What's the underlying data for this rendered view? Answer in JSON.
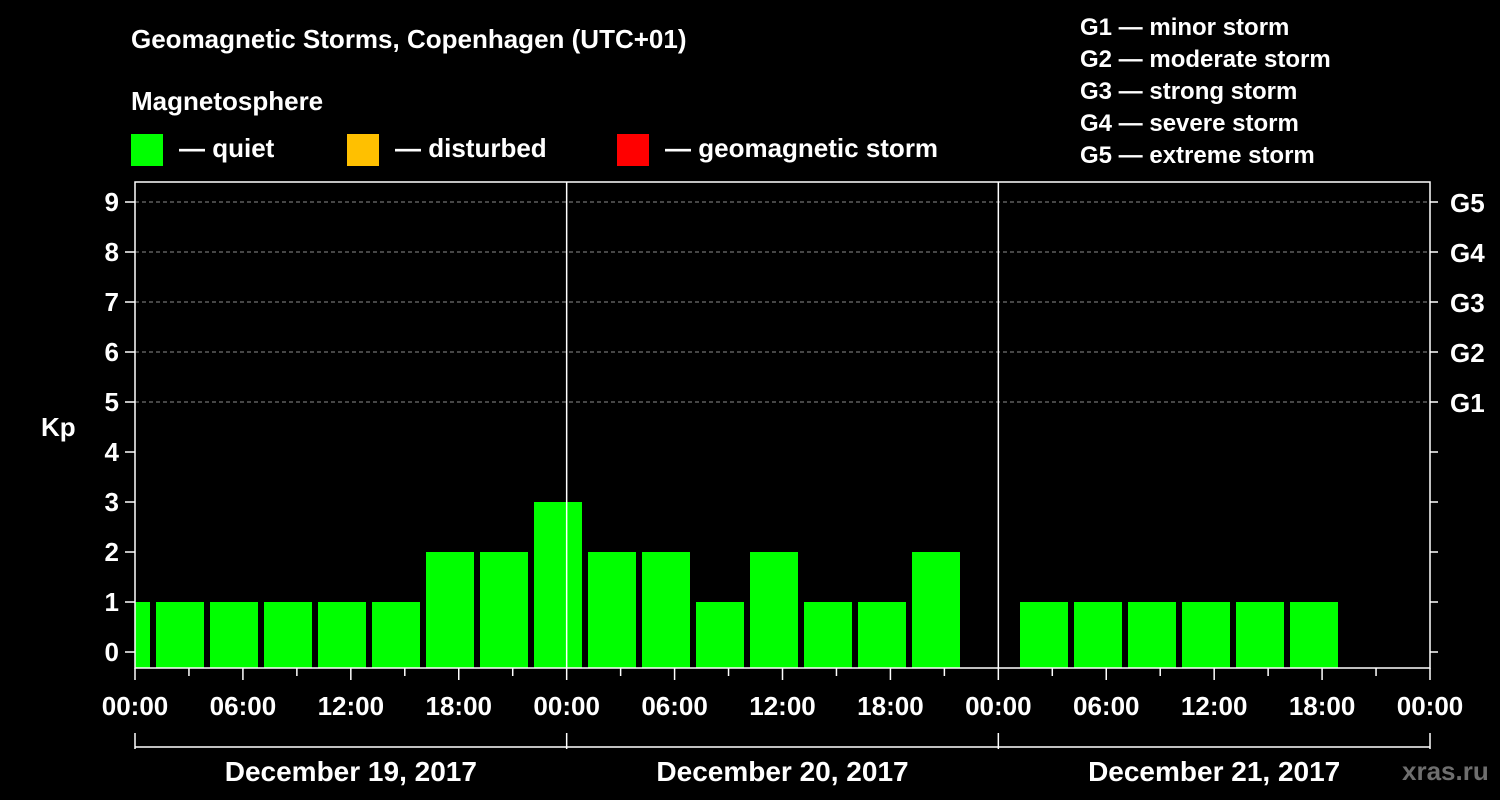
{
  "header": {
    "title": "Geomagnetic Storms, Copenhagen (UTC+01)",
    "subtitle": "Magnetosphere"
  },
  "legend": {
    "quiet": {
      "label": "— quiet",
      "color": "#00ff00"
    },
    "disturbed": {
      "label": "— disturbed",
      "color": "#ffc000"
    },
    "storm": {
      "label": "— geomagnetic storm",
      "color": "#ff0000"
    }
  },
  "g_scale": [
    "G1 — minor storm",
    "G2 — moderate storm",
    "G3 — strong storm",
    "G4 — severe storm",
    "G5 — extreme storm"
  ],
  "watermark": "xras.ru",
  "chart_data": {
    "type": "bar",
    "title": "Geomagnetic Storms, Copenhagen (UTC+01)",
    "ylabel": "Kp",
    "ylim": [
      0,
      9
    ],
    "y_ticks": [
      "0",
      "1",
      "2",
      "3",
      "4",
      "5",
      "6",
      "7",
      "8",
      "9"
    ],
    "right_ticks": [
      {
        "value": 5,
        "label": "G1"
      },
      {
        "value": 6,
        "label": "G2"
      },
      {
        "value": 7,
        "label": "G3"
      },
      {
        "value": 8,
        "label": "G4"
      },
      {
        "value": 9,
        "label": "G5"
      }
    ],
    "x_ticks": [
      "00:00",
      "06:00",
      "12:00",
      "18:00",
      "00:00",
      "06:00",
      "12:00",
      "18:00",
      "00:00",
      "06:00",
      "12:00",
      "18:00",
      "00:00"
    ],
    "days": [
      "December 19, 2017",
      "December 20, 2017",
      "December 21, 2017"
    ],
    "interval_hours": 3,
    "values": [
      1,
      1,
      1,
      1,
      1,
      1,
      2,
      2,
      3,
      2,
      2,
      1,
      2,
      1,
      1,
      2,
      null,
      1,
      1,
      1,
      1,
      1,
      1,
      null
    ],
    "color": "#00ff00"
  }
}
